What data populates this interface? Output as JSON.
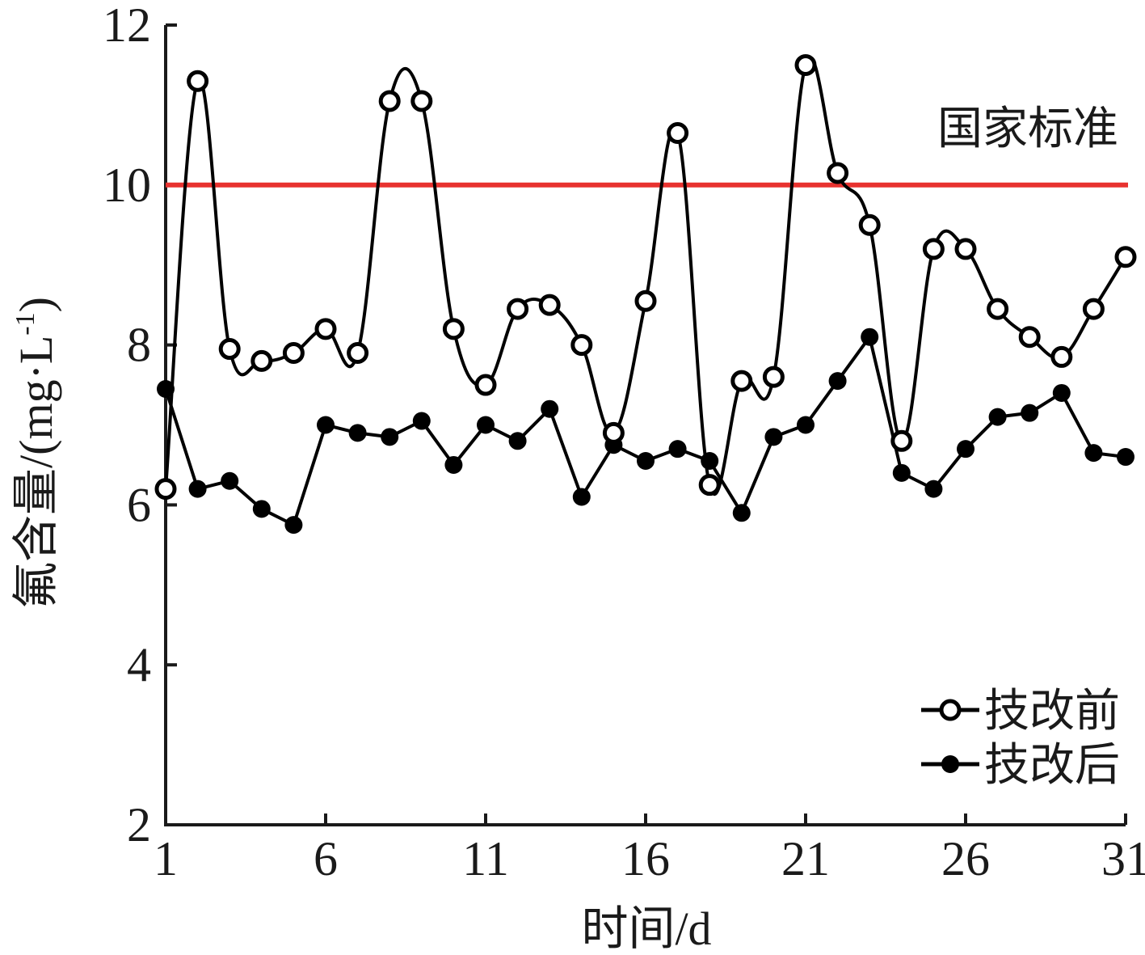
{
  "chart_data": {
    "type": "line",
    "title": "",
    "xlabel": "时间/d",
    "ylabel": "氟含量/(mg·L",
    "ylabel_sup": "-1",
    "ylabel_close": ")",
    "xlim": [
      1,
      31
    ],
    "ylim": [
      2,
      12
    ],
    "xticks": [
      1,
      6,
      11,
      16,
      21,
      26,
      31
    ],
    "yticks": [
      2,
      4,
      6,
      8,
      10,
      12
    ],
    "grid": false,
    "legend_position": "bottom-right",
    "x": [
      1,
      2,
      3,
      4,
      5,
      6,
      7,
      8,
      9,
      10,
      11,
      12,
      13,
      14,
      15,
      16,
      17,
      18,
      19,
      20,
      21,
      22,
      23,
      24,
      25,
      26,
      27,
      28,
      29,
      30,
      31
    ],
    "series": [
      {
        "name": "技改前",
        "marker": "open-circle",
        "color": "#000000",
        "values": [
          6.2,
          11.3,
          7.95,
          7.8,
          7.9,
          8.2,
          7.9,
          11.05,
          11.05,
          8.2,
          7.5,
          8.45,
          8.5,
          8.0,
          6.9,
          8.55,
          10.65,
          6.25,
          7.55,
          7.6,
          11.5,
          10.15,
          9.5,
          6.8,
          9.2,
          9.2,
          8.45,
          8.1,
          7.85,
          8.45,
          9.1
        ]
      },
      {
        "name": "技改后",
        "marker": "filled-circle",
        "color": "#000000",
        "values": [
          7.45,
          6.2,
          6.3,
          5.95,
          5.75,
          7.0,
          6.9,
          6.85,
          7.05,
          6.5,
          7.0,
          6.8,
          7.2,
          6.1,
          6.75,
          6.55,
          6.7,
          6.55,
          5.9,
          6.85,
          7.0,
          7.55,
          8.1,
          6.4,
          6.2,
          6.7,
          7.1,
          7.15,
          7.4,
          6.65,
          6.6
        ]
      }
    ],
    "reference_line": {
      "value": 10,
      "label": "国家标准",
      "color": "#e8322f"
    }
  }
}
